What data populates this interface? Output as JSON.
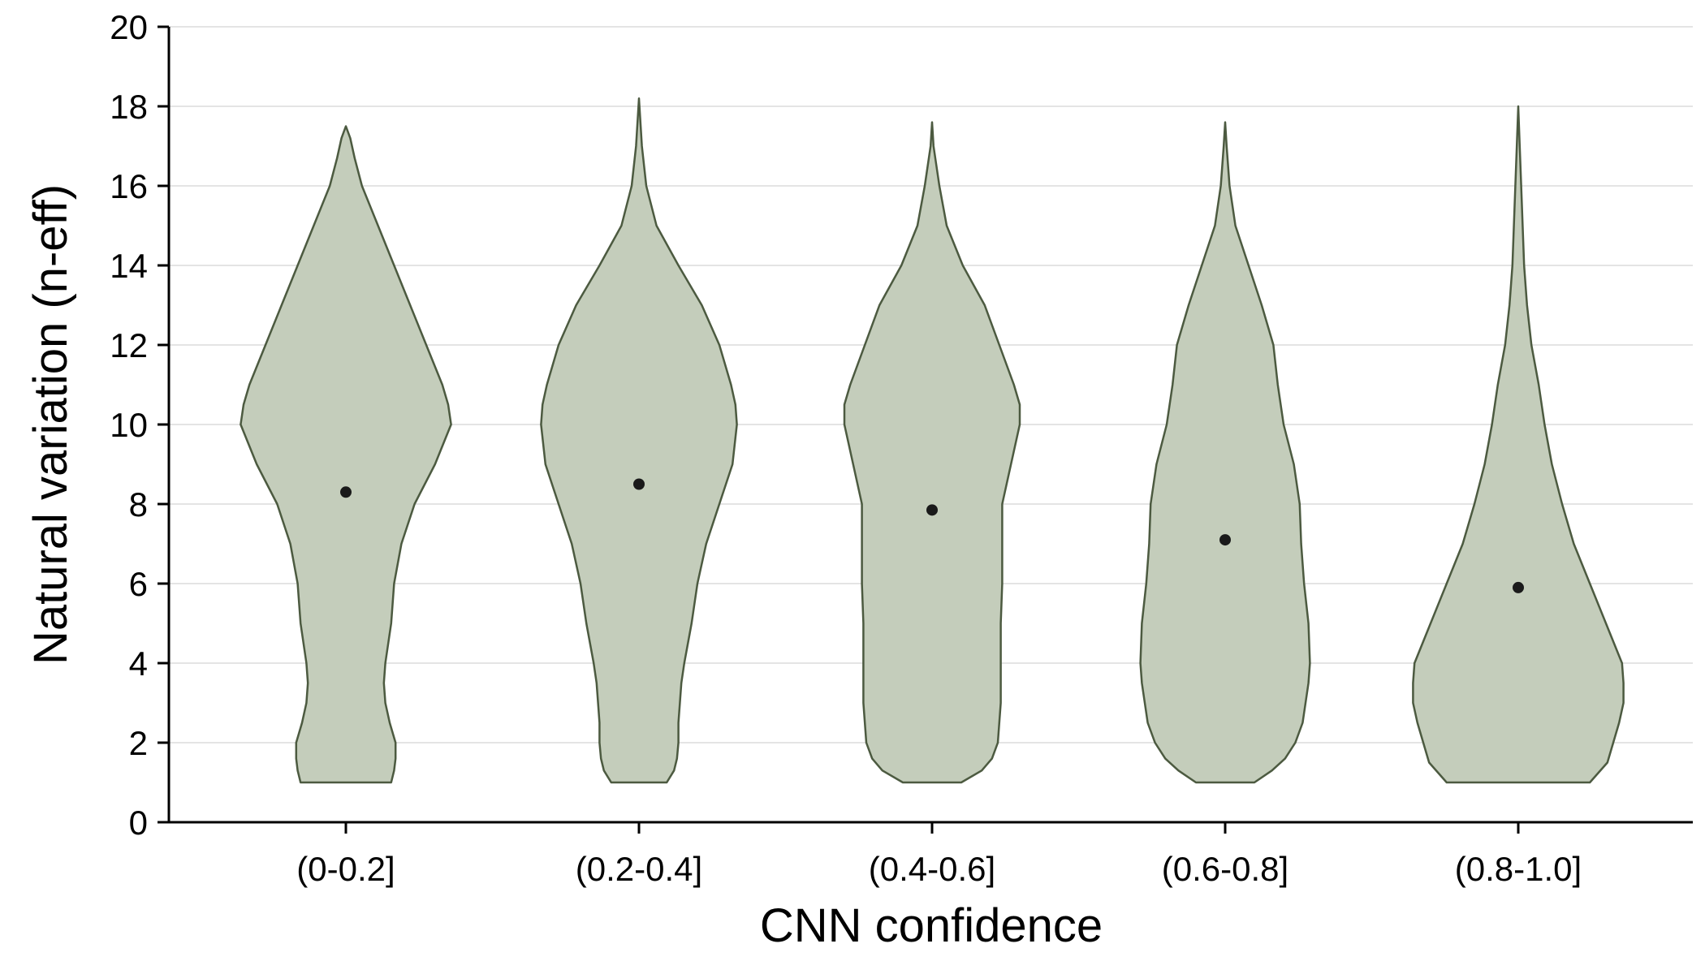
{
  "chart_data": {
    "type": "violin",
    "xlabel": "CNN confidence",
    "ylabel": "Natural variation (n-eff)",
    "ylim": [
      0,
      20
    ],
    "yticks": [
      0,
      2,
      4,
      6,
      8,
      10,
      12,
      14,
      16,
      18,
      20
    ],
    "grid": "horizontal",
    "categories": [
      "(0-0.2]",
      "(0.2-0.4]",
      "(0.4-0.6]",
      "(0.6-0.8]",
      "(0.8-1.0]"
    ],
    "markers": [
      8.3,
      8.5,
      7.85,
      7.1,
      5.9
    ],
    "colors": {
      "fill": "#c4cdbb",
      "outline": "#4c5a40",
      "marker": "#1a1a1a",
      "grid": "#e4e4e4"
    },
    "violins": [
      {
        "profile": [
          [
            1.0,
            0.31
          ],
          [
            1.3,
            0.33
          ],
          [
            1.6,
            0.34
          ],
          [
            2.0,
            0.34
          ],
          [
            2.5,
            0.3
          ],
          [
            3.0,
            0.27
          ],
          [
            3.5,
            0.26
          ],
          [
            4.0,
            0.27
          ],
          [
            5.0,
            0.31
          ],
          [
            6.0,
            0.33
          ],
          [
            7.0,
            0.38
          ],
          [
            8.0,
            0.47
          ],
          [
            9.0,
            0.61
          ],
          [
            10.0,
            0.72
          ],
          [
            10.5,
            0.7
          ],
          [
            11.0,
            0.66
          ],
          [
            12.0,
            0.55
          ],
          [
            13.0,
            0.44
          ],
          [
            14.0,
            0.33
          ],
          [
            15.0,
            0.22
          ],
          [
            16.0,
            0.11
          ],
          [
            16.7,
            0.06
          ],
          [
            17.2,
            0.03
          ],
          [
            17.5,
            0.0
          ]
        ]
      },
      {
        "profile": [
          [
            1.0,
            0.19
          ],
          [
            1.3,
            0.24
          ],
          [
            1.6,
            0.26
          ],
          [
            2.0,
            0.27
          ],
          [
            2.5,
            0.27
          ],
          [
            3.0,
            0.28
          ],
          [
            3.5,
            0.29
          ],
          [
            4.0,
            0.31
          ],
          [
            5.0,
            0.36
          ],
          [
            6.0,
            0.4
          ],
          [
            7.0,
            0.46
          ],
          [
            8.0,
            0.55
          ],
          [
            9.0,
            0.64
          ],
          [
            10.0,
            0.67
          ],
          [
            10.5,
            0.66
          ],
          [
            11.0,
            0.63
          ],
          [
            12.0,
            0.55
          ],
          [
            13.0,
            0.43
          ],
          [
            14.0,
            0.27
          ],
          [
            15.0,
            0.12
          ],
          [
            16.0,
            0.05
          ],
          [
            17.0,
            0.02
          ],
          [
            18.2,
            0.0
          ]
        ]
      },
      {
        "profile": [
          [
            1.0,
            0.2
          ],
          [
            1.3,
            0.34
          ],
          [
            1.6,
            0.41
          ],
          [
            2.0,
            0.45
          ],
          [
            2.5,
            0.46
          ],
          [
            3.0,
            0.47
          ],
          [
            3.5,
            0.47
          ],
          [
            4.0,
            0.47
          ],
          [
            5.0,
            0.47
          ],
          [
            6.0,
            0.48
          ],
          [
            7.0,
            0.48
          ],
          [
            8.0,
            0.48
          ],
          [
            9.0,
            0.54
          ],
          [
            10.0,
            0.6
          ],
          [
            10.5,
            0.6
          ],
          [
            11.0,
            0.56
          ],
          [
            12.0,
            0.46
          ],
          [
            13.0,
            0.36
          ],
          [
            14.0,
            0.21
          ],
          [
            15.0,
            0.1
          ],
          [
            16.0,
            0.05
          ],
          [
            17.0,
            0.01
          ],
          [
            17.6,
            0.0
          ]
        ]
      },
      {
        "profile": [
          [
            1.0,
            0.2
          ],
          [
            1.3,
            0.32
          ],
          [
            1.6,
            0.41
          ],
          [
            2.0,
            0.48
          ],
          [
            2.5,
            0.53
          ],
          [
            3.0,
            0.55
          ],
          [
            3.5,
            0.57
          ],
          [
            4.0,
            0.58
          ],
          [
            5.0,
            0.57
          ],
          [
            6.0,
            0.54
          ],
          [
            7.0,
            0.52
          ],
          [
            8.0,
            0.51
          ],
          [
            9.0,
            0.47
          ],
          [
            10.0,
            0.4
          ],
          [
            11.0,
            0.36
          ],
          [
            12.0,
            0.33
          ],
          [
            13.0,
            0.25
          ],
          [
            14.0,
            0.16
          ],
          [
            15.0,
            0.07
          ],
          [
            16.0,
            0.03
          ],
          [
            17.0,
            0.01
          ],
          [
            17.6,
            0.0
          ]
        ]
      },
      {
        "profile": [
          [
            1.0,
            0.49
          ],
          [
            1.5,
            0.61
          ],
          [
            2.0,
            0.65
          ],
          [
            2.5,
            0.69
          ],
          [
            3.0,
            0.72
          ],
          [
            3.5,
            0.72
          ],
          [
            4.0,
            0.71
          ],
          [
            5.0,
            0.6
          ],
          [
            6.0,
            0.49
          ],
          [
            7.0,
            0.38
          ],
          [
            8.0,
            0.3
          ],
          [
            9.0,
            0.23
          ],
          [
            10.0,
            0.18
          ],
          [
            11.0,
            0.14
          ],
          [
            12.0,
            0.09
          ],
          [
            13.0,
            0.06
          ],
          [
            14.0,
            0.04
          ],
          [
            15.0,
            0.03
          ],
          [
            16.0,
            0.02
          ],
          [
            17.0,
            0.01
          ],
          [
            18.0,
            0.0
          ]
        ]
      }
    ]
  }
}
